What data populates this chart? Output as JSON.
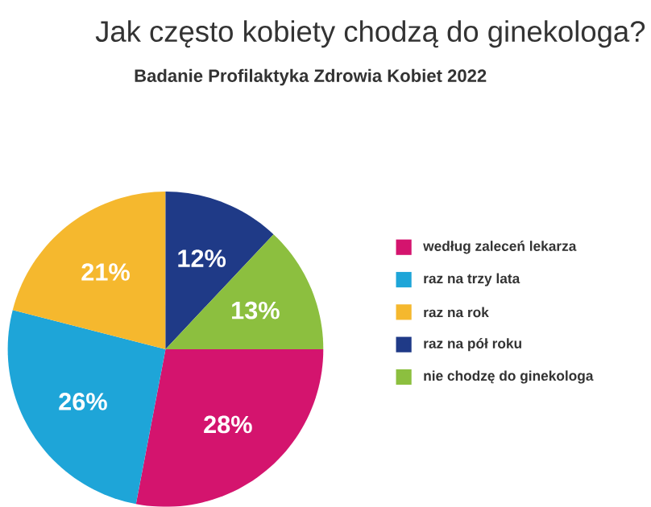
{
  "chart_data": {
    "type": "pie",
    "title": "Jak często kobiety chodzą do ginekologa?",
    "subtitle": "Badanie Profilaktyka Zdrowia Kobiet 2022",
    "categories": [
      "według zaleceń lekarza",
      "raz na trzy lata",
      "raz na rok",
      "raz na pół roku",
      "nie chodzę do ginekologa"
    ],
    "values": [
      28,
      26,
      21,
      12,
      13
    ],
    "value_labels": [
      "28%",
      "26%",
      "21%",
      "12%",
      "13%"
    ],
    "colors": [
      "#d4146e",
      "#1ea5d8",
      "#f5b82e",
      "#1f3a87",
      "#8cbf3f"
    ],
    "legend": "right"
  }
}
